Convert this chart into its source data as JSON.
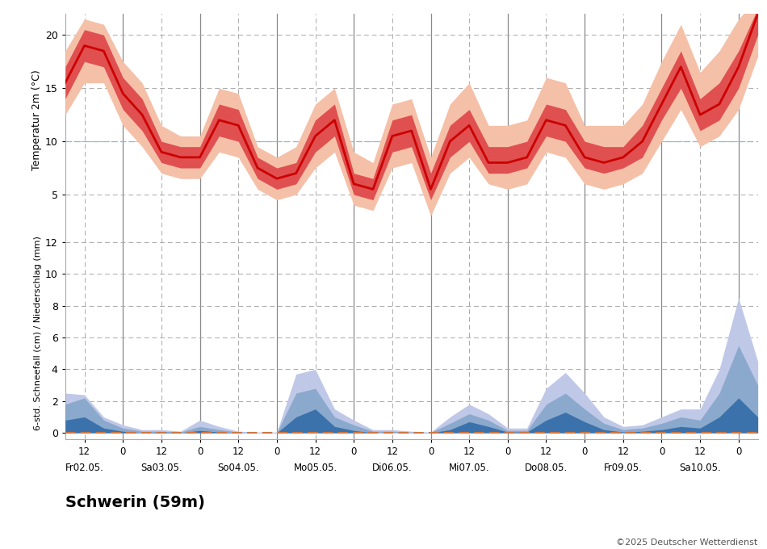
{
  "title": "Schwerin (59m)",
  "copyright": "©2025 Deutscher Wetterdienst",
  "temp_ylabel": "Temperatur 2m (°C)",
  "precip_ylabel": "6-std. Schneefall (cm) / Niederschlag (mm)",
  "temp_ylim": [
    2,
    22
  ],
  "temp_yticks": [
    5,
    10,
    15,
    20
  ],
  "precip_ylim": [
    -0.4,
    13
  ],
  "precip_yticks": [
    0,
    2,
    4,
    6,
    8,
    10,
    12
  ],
  "days": [
    "Fr02.05.",
    "Sa03.05.",
    "So04.05.",
    "Mo05.05.",
    "Di06.05.",
    "Mi07.05.",
    "Do08.05.",
    "Fr09.05.",
    "Sa10.05."
  ],
  "n_steps": 37,
  "temp_median": [
    15.5,
    19.0,
    18.5,
    14.5,
    12.5,
    9.0,
    8.5,
    8.5,
    12.0,
    11.5,
    7.5,
    6.5,
    7.0,
    10.5,
    12.0,
    6.0,
    5.5,
    10.5,
    11.0,
    5.5,
    10.0,
    11.5,
    8.0,
    8.0,
    8.5,
    12.0,
    11.5,
    8.5,
    8.0,
    8.5,
    10.0,
    13.5,
    17.0,
    12.5,
    13.5,
    17.0,
    22.0
  ],
  "temp_p25": [
    14.0,
    17.5,
    17.0,
    13.0,
    11.0,
    8.0,
    7.5,
    7.5,
    10.5,
    10.0,
    6.5,
    5.5,
    6.0,
    9.0,
    10.5,
    5.0,
    4.5,
    9.0,
    9.5,
    4.5,
    8.5,
    10.0,
    7.0,
    7.0,
    7.5,
    10.5,
    10.0,
    7.5,
    7.0,
    7.5,
    8.5,
    12.0,
    15.0,
    11.0,
    12.0,
    15.0,
    20.0
  ],
  "temp_p75": [
    17.0,
    20.5,
    20.0,
    16.0,
    14.0,
    10.0,
    9.5,
    9.5,
    13.5,
    13.0,
    8.5,
    7.5,
    8.0,
    12.0,
    13.5,
    7.0,
    6.5,
    12.0,
    12.5,
    7.0,
    11.5,
    13.0,
    9.5,
    9.5,
    10.0,
    13.5,
    13.0,
    10.0,
    9.5,
    9.5,
    11.5,
    15.0,
    18.5,
    14.0,
    15.5,
    18.5,
    22.5
  ],
  "temp_p10": [
    12.5,
    15.5,
    15.5,
    11.5,
    9.5,
    7.0,
    6.5,
    6.5,
    9.0,
    8.5,
    5.5,
    4.5,
    5.0,
    7.5,
    9.0,
    4.0,
    3.5,
    7.5,
    8.0,
    3.0,
    7.0,
    8.5,
    6.0,
    5.5,
    6.0,
    9.0,
    8.5,
    6.0,
    5.5,
    6.0,
    7.0,
    10.0,
    13.0,
    9.5,
    10.5,
    13.0,
    18.0
  ],
  "temp_p90": [
    18.5,
    21.5,
    21.0,
    17.5,
    15.5,
    11.5,
    10.5,
    10.5,
    15.0,
    14.5,
    9.5,
    8.5,
    9.5,
    13.5,
    15.0,
    9.0,
    8.0,
    13.5,
    14.0,
    8.5,
    13.5,
    15.5,
    11.5,
    11.5,
    12.0,
    16.0,
    15.5,
    11.5,
    11.5,
    11.5,
    13.5,
    17.5,
    21.0,
    16.5,
    18.5,
    21.5,
    23.5
  ],
  "precip_p90": [
    2.5,
    2.4,
    1.0,
    0.5,
    0.2,
    0.2,
    0.1,
    0.8,
    0.4,
    0.1,
    0.05,
    0.05,
    3.7,
    4.0,
    1.5,
    0.8,
    0.2,
    0.2,
    0.1,
    0.05,
    1.0,
    1.8,
    1.2,
    0.3,
    0.3,
    2.8,
    3.8,
    2.5,
    1.0,
    0.4,
    0.5,
    1.0,
    1.5,
    1.5,
    4.0,
    8.5,
    4.5
  ],
  "precip_p75": [
    1.8,
    2.2,
    0.8,
    0.3,
    0.1,
    0.1,
    0.05,
    0.4,
    0.2,
    0.05,
    0.02,
    0.02,
    2.5,
    2.8,
    1.0,
    0.5,
    0.1,
    0.1,
    0.05,
    0.02,
    0.6,
    1.2,
    0.8,
    0.15,
    0.15,
    1.8,
    2.5,
    1.5,
    0.6,
    0.2,
    0.3,
    0.6,
    1.0,
    0.8,
    2.5,
    5.5,
    3.0
  ],
  "precip_median": [
    0.8,
    1.0,
    0.3,
    0.1,
    0.0,
    0.05,
    0.0,
    0.15,
    0.05,
    0.0,
    0.0,
    0.0,
    1.0,
    1.5,
    0.4,
    0.15,
    0.0,
    0.0,
    0.0,
    0.0,
    0.2,
    0.7,
    0.4,
    0.05,
    0.05,
    0.8,
    1.3,
    0.7,
    0.2,
    0.05,
    0.1,
    0.2,
    0.4,
    0.3,
    1.0,
    2.2,
    1.0
  ],
  "precip_p25": [
    0.3,
    0.5,
    0.1,
    0.0,
    0.0,
    0.0,
    0.0,
    0.05,
    0.0,
    0.0,
    0.0,
    0.0,
    0.4,
    0.8,
    0.15,
    0.05,
    0.0,
    0.0,
    0.0,
    0.0,
    0.05,
    0.3,
    0.15,
    0.0,
    0.0,
    0.3,
    0.7,
    0.3,
    0.05,
    0.0,
    0.0,
    0.05,
    0.1,
    0.1,
    0.4,
    0.8,
    0.3
  ],
  "bg_color": "#ffffff",
  "temp_color_median": "#cc0000",
  "temp_color_p25_75": "#e05050",
  "temp_color_p10_90": "#f5c0a8",
  "precip_color_outer": "#c0c8e8",
  "precip_color_mid": "#6090b8",
  "precip_color_inner": "#2060a0",
  "dashed_line_color": "#cc7744",
  "grid_color": "#aaaaaa",
  "vline_color_solid": "#888888",
  "vline_color_dash": "#aaaaaa"
}
